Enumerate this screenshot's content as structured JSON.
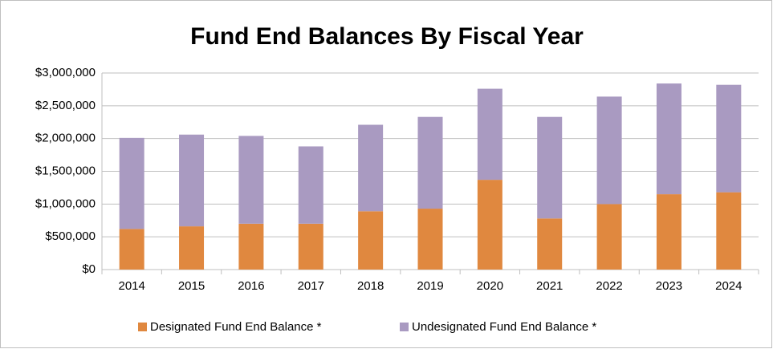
{
  "chart_data": {
    "type": "stacked_bar",
    "title": "Fund End Balances By Fiscal Year",
    "categories": [
      "2014",
      "2015",
      "2016",
      "2017",
      "2018",
      "2019",
      "2020",
      "2021",
      "2022",
      "2023",
      "2024"
    ],
    "series": [
      {
        "name": "Designated Fund End Balance *",
        "color": "#e0883f",
        "values": [
          620000,
          660000,
          700000,
          700000,
          890000,
          930000,
          1370000,
          780000,
          1000000,
          1150000,
          1180000
        ]
      },
      {
        "name": "Undesignated Fund End Balance *",
        "color": "#a99ac1",
        "values": [
          1390000,
          1400000,
          1340000,
          1180000,
          1320000,
          1400000,
          1390000,
          1550000,
          1640000,
          1690000,
          1640000
        ]
      }
    ],
    "ylim": [
      0,
      3000000
    ],
    "yticks": [
      {
        "value": 0,
        "label": "$0"
      },
      {
        "value": 500000,
        "label": "$500,000"
      },
      {
        "value": 1000000,
        "label": "$1,000,000"
      },
      {
        "value": 1500000,
        "label": "$1,500,000"
      },
      {
        "value": 2000000,
        "label": "$2,000,000"
      },
      {
        "value": 2500000,
        "label": "$2,500,000"
      },
      {
        "value": 3000000,
        "label": "$3,000,000"
      }
    ],
    "grid": true,
    "legend": "bottom"
  }
}
